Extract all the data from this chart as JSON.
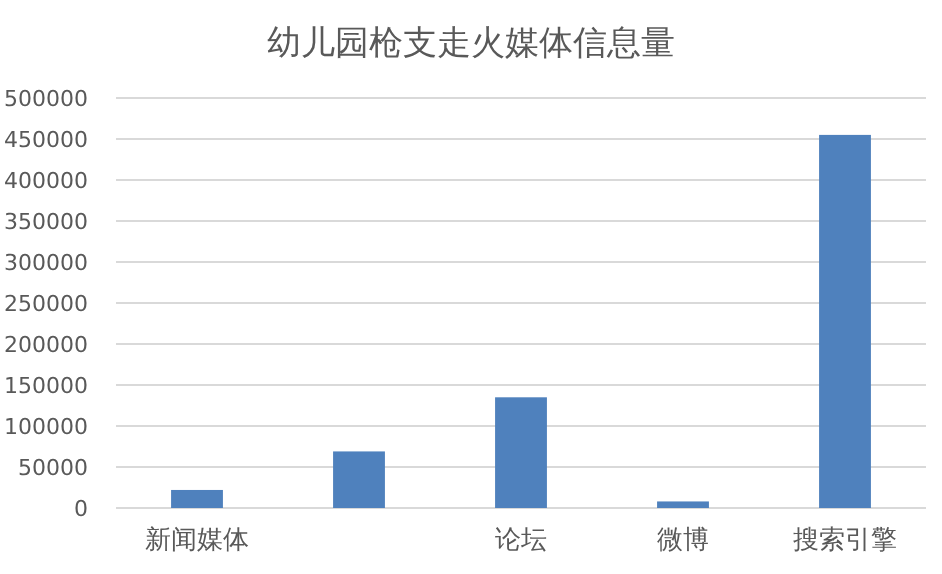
{
  "chart_data": {
    "type": "bar",
    "title": "幼儿园枪支走火媒体信息量",
    "categories": [
      "新闻媒体",
      null,
      "论坛",
      "微博",
      "搜索引擎"
    ],
    "values": [
      22000,
      69000,
      135000,
      8000,
      455000
    ],
    "color": "#4f81bd",
    "ylim": [
      0,
      500000
    ],
    "yticks": [
      0,
      50000,
      100000,
      150000,
      200000,
      250000,
      300000,
      350000,
      400000,
      450000,
      500000
    ],
    "grid": "y"
  }
}
